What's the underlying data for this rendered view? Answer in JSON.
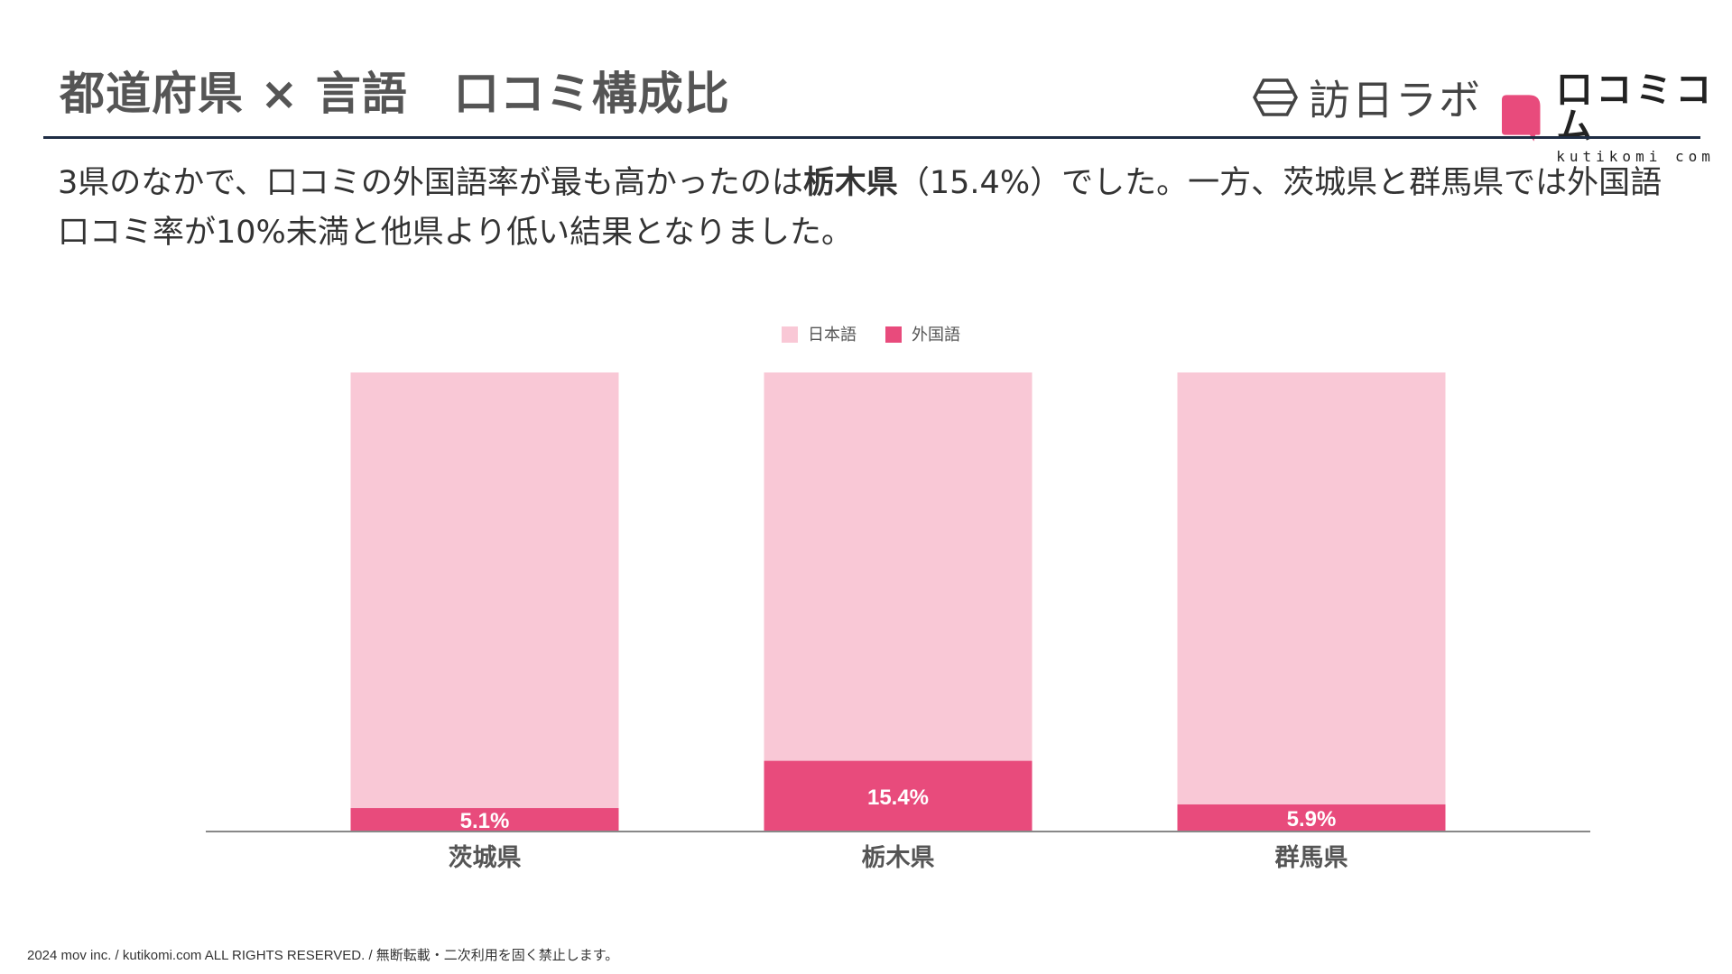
{
  "header": {
    "title": "都道府県 × 言語　口コミ構成比",
    "logo_houjin": "訪日ラボ",
    "logo_kutikomi_jp": "口コミコム",
    "logo_kutikomi_en": "kutikomi com"
  },
  "lead": {
    "part1": "3県のなかで、口コミの外国語率が最も高かったのは",
    "highlight": "栃木県",
    "part2": "（15.4%）でした。一方、茨城県と群馬県では外国語口コミ率が10%未満と他県より低い結果となりました。"
  },
  "colors": {
    "japanese": "#f9c8d6",
    "foreign": "#e84b7c",
    "axis": "#888888",
    "rule": "#1f2d44"
  },
  "chart_data": {
    "type": "bar",
    "stacked": true,
    "normalized": true,
    "categories": [
      "茨城県",
      "栃木県",
      "群馬県"
    ],
    "series": [
      {
        "name": "外国語",
        "values": [
          5.1,
          15.4,
          5.9
        ],
        "labels": [
          "5.1%",
          "15.4%",
          "5.9%"
        ]
      },
      {
        "name": "日本語",
        "values": [
          94.9,
          84.6,
          94.1
        ]
      }
    ],
    "legend": [
      "日本語",
      "外国語"
    ],
    "legend_position": "top-center",
    "ylim": [
      0,
      100
    ],
    "title": "",
    "xlabel": "",
    "ylabel": ""
  },
  "footer": "2024 mov inc. / kutikomi.com ALL RIGHTS RESERVED. / 無断転載・二次利用を固く禁止します。"
}
